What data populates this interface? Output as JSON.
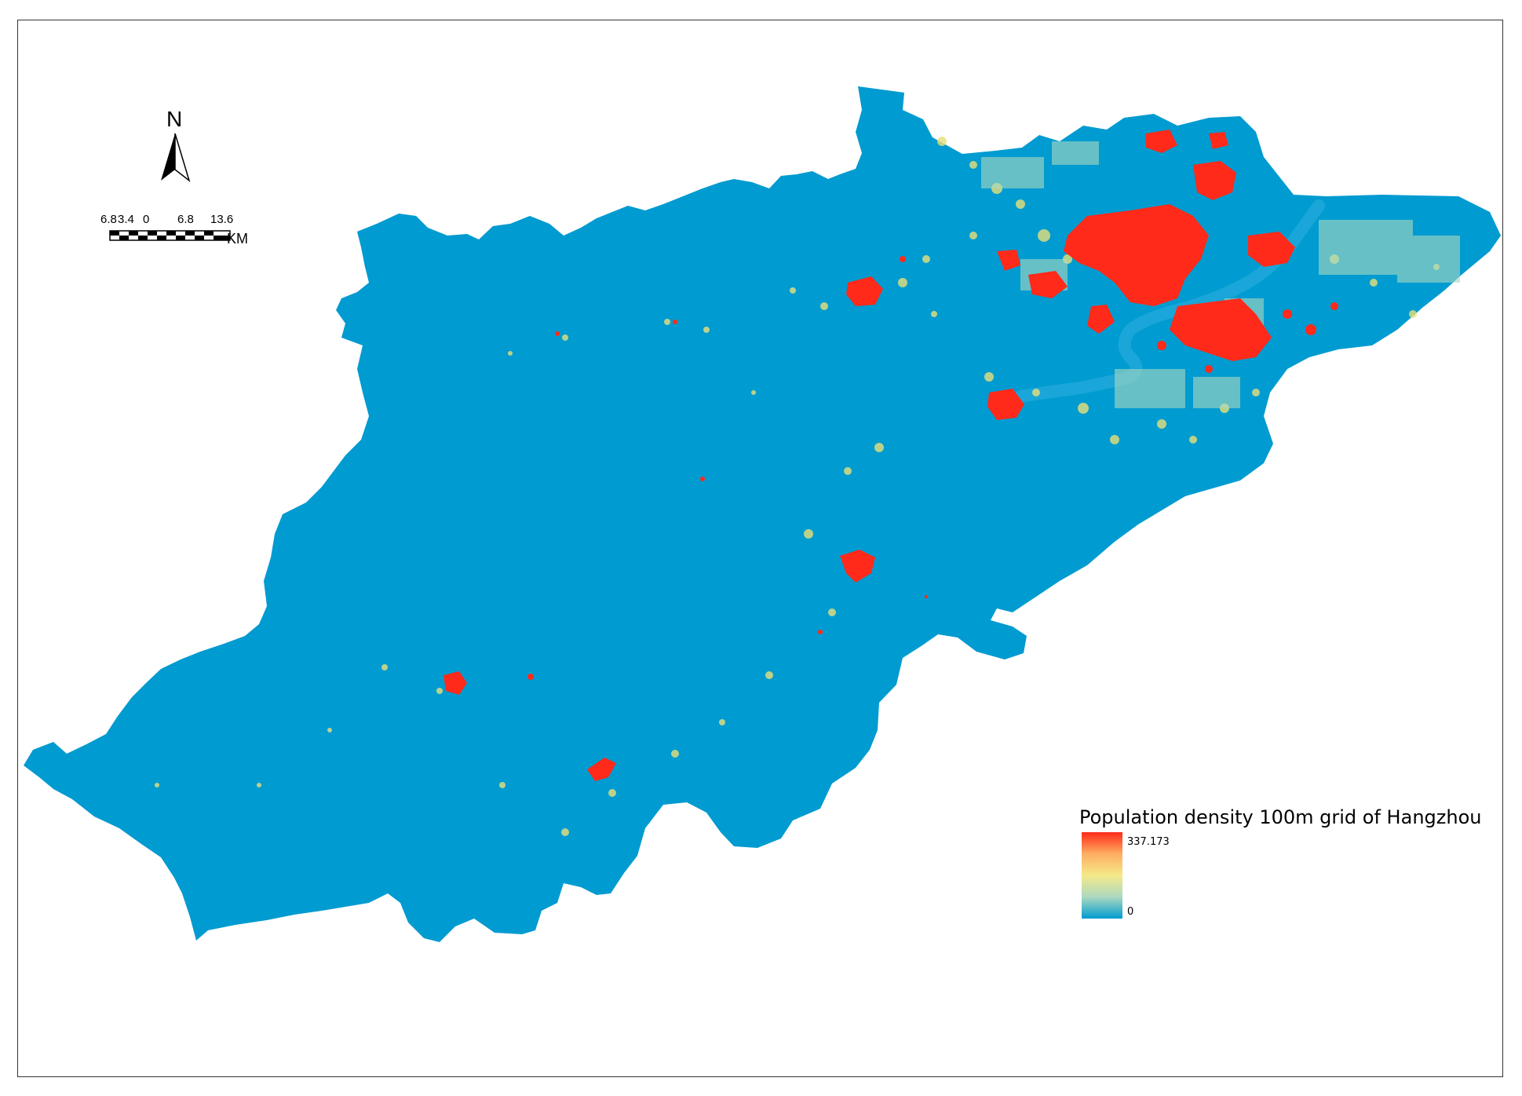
{
  "map": {
    "region": "Hangzhou",
    "colors": {
      "background": "#ffffff",
      "frame": "#333333",
      "low": "#009bd0",
      "mid": "#9ed6b4",
      "mid2": "#f0e68c",
      "high": "#ff2a1a"
    }
  },
  "north_arrow": {
    "letter": "N",
    "icon": "north-arrow-icon"
  },
  "scale_bar": {
    "labels": [
      "6.8",
      "3.4",
      "0",
      "6.8",
      "13.6"
    ],
    "unit": "KM"
  },
  "legend": {
    "title": "Population density 100m grid of Hangzhou",
    "max_label": "337.173",
    "min_label": "0",
    "ramp_colors": [
      "#ff2a1a",
      "#fdae61",
      "#f5e98a",
      "#abd9c0",
      "#009bd0"
    ]
  }
}
